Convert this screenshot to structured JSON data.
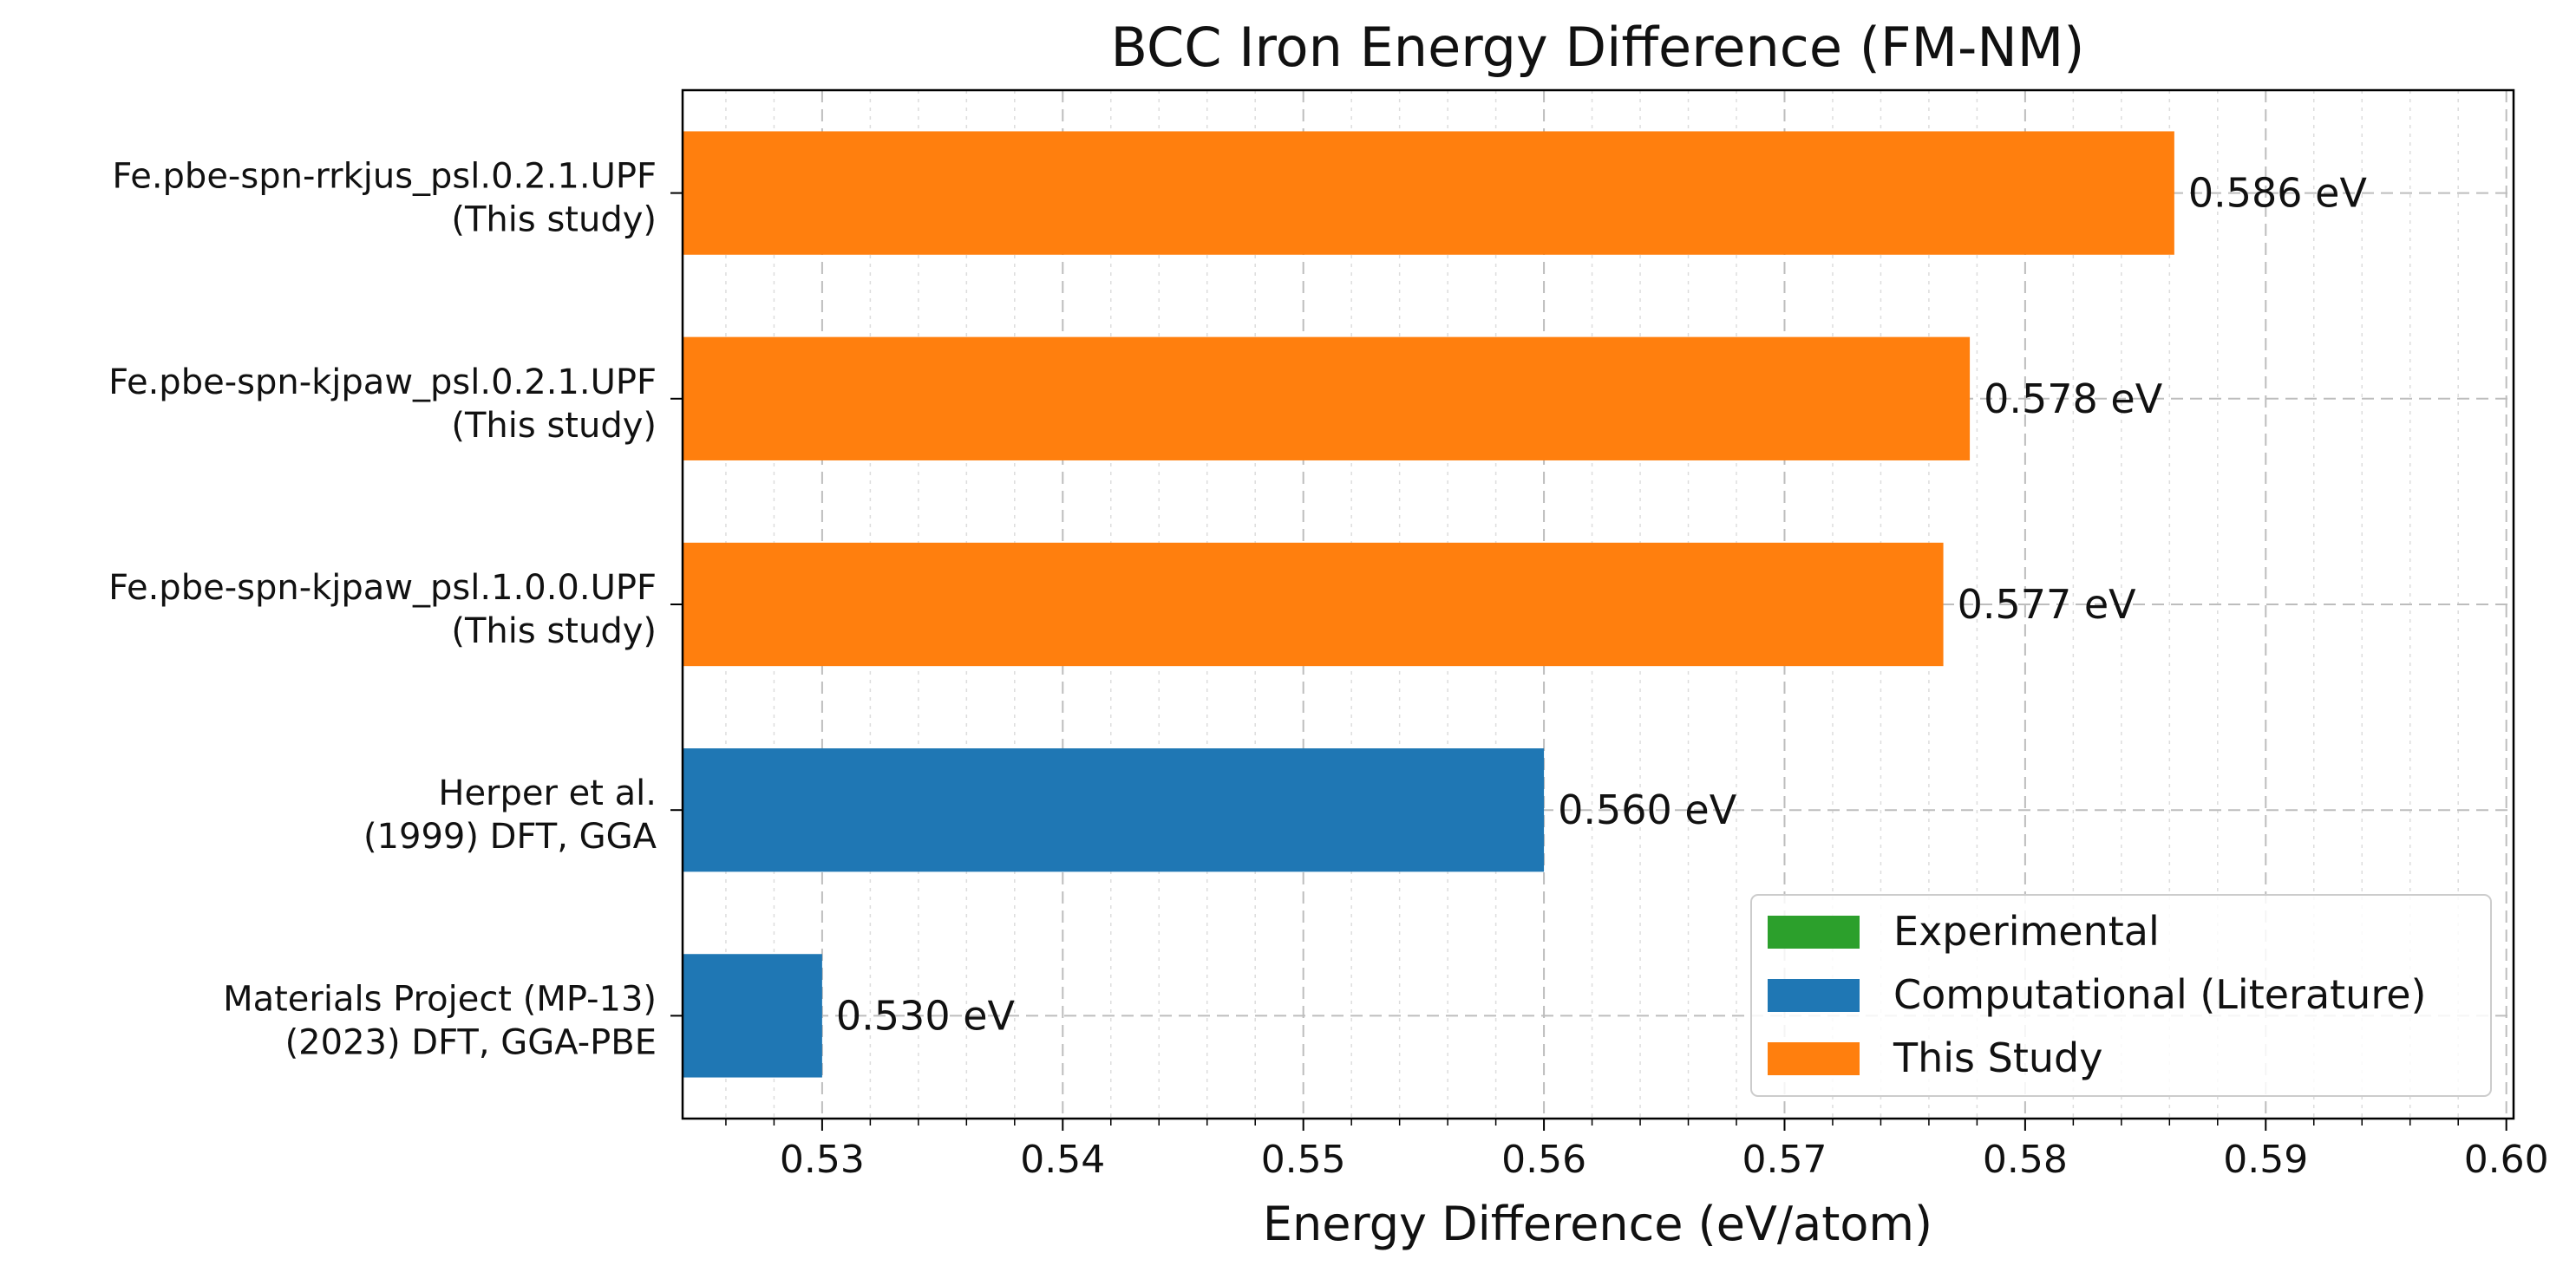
{
  "chart_data": {
    "type": "bar",
    "orientation": "horizontal",
    "title": "BCC Iron Energy Difference (FM-NM)",
    "xlabel": "Energy Difference (eV/atom)",
    "ylabel": "",
    "xlim": [
      0.5242,
      0.6003
    ],
    "xticks": [
      0.53,
      0.54,
      0.55,
      0.56,
      0.57,
      0.58,
      0.59,
      0.6
    ],
    "xtick_labels": [
      "0.53",
      "0.54",
      "0.55",
      "0.56",
      "0.57",
      "0.58",
      "0.59",
      "0.60"
    ],
    "grid": true,
    "minor_grid": true,
    "legend_position": "bottom-right",
    "bars": [
      {
        "label_line1": "Fe.pbe-spn-rrkjus_psl.0.2.1.UPF",
        "label_line2": "(This study)",
        "value": 0.5862,
        "value_label": "0.586 eV",
        "group": "This Study"
      },
      {
        "label_line1": "Fe.pbe-spn-kjpaw_psl.0.2.1.UPF",
        "label_line2": "(This study)",
        "value": 0.5777,
        "value_label": "0.578 eV",
        "group": "This Study"
      },
      {
        "label_line1": "Fe.pbe-spn-kjpaw_psl.1.0.0.UPF",
        "label_line2": "(This study)",
        "value": 0.5766,
        "value_label": "0.577 eV",
        "group": "This Study"
      },
      {
        "label_line1": "Herper et al.",
        "label_line2": "(1999) DFT, GGA",
        "value": 0.56,
        "value_label": "0.560 eV",
        "group": "Computational (Literature)"
      },
      {
        "label_line1": "Materials Project (MP-13)",
        "label_line2": "(2023) DFT, GGA-PBE",
        "value": 0.53,
        "value_label": "0.530 eV",
        "group": "Computational (Literature)"
      }
    ],
    "legend": [
      {
        "name": "Experimental",
        "color": "#2ca02c"
      },
      {
        "name": "Computational (Literature)",
        "color": "#1f77b4"
      },
      {
        "name": "This Study",
        "color": "#ff7f0e"
      }
    ]
  }
}
